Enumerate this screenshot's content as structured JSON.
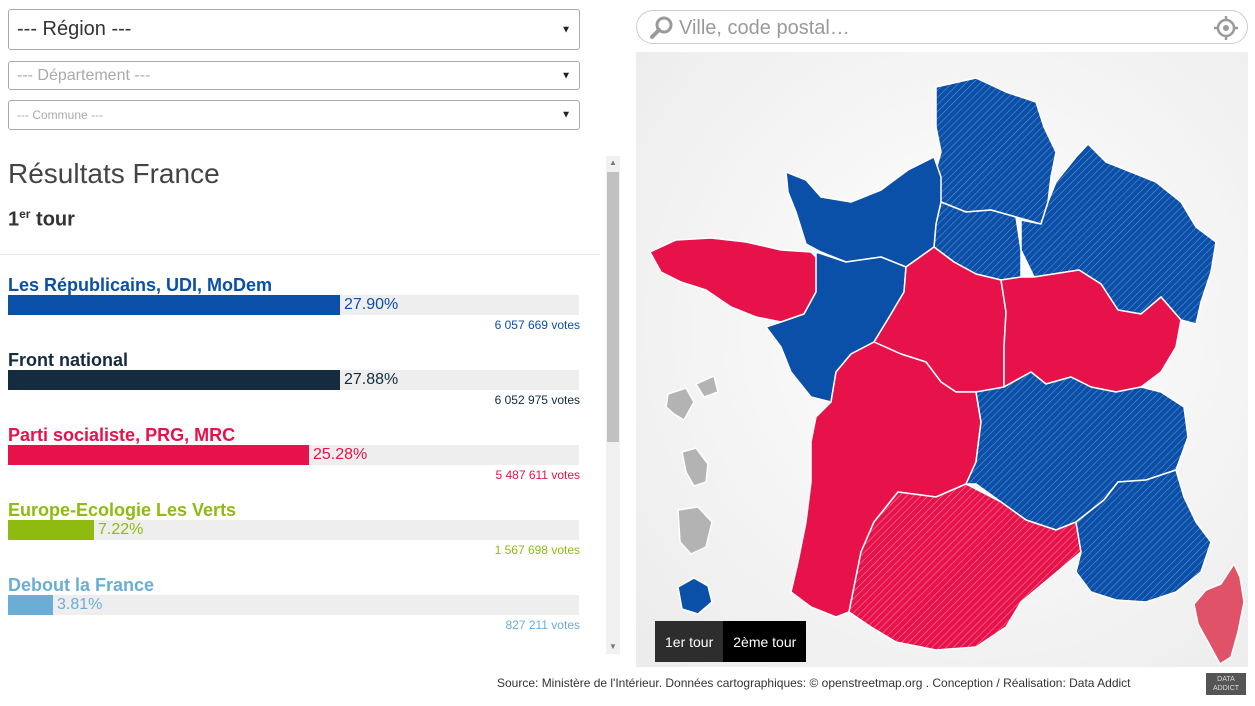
{
  "filters": {
    "region": "--- Région ---",
    "departement": "--- Département ---",
    "commune": "--- Commune ---"
  },
  "results": {
    "title": "Résultats France",
    "round_prefix": "1",
    "round_sup": "er",
    "round_suffix": "tour",
    "parties": [
      {
        "name": "Les Républicains, UDI, MoDem",
        "pct": "27.90%",
        "share": 27.9,
        "votes": "6 057 669 votes",
        "color": "#0a4fa8"
      },
      {
        "name": "Front national",
        "pct": "27.88%",
        "share": 27.88,
        "votes": "6 052 975 votes",
        "color": "#142b40"
      },
      {
        "name": "Parti socialiste, PRG, MRC",
        "pct": "25.28%",
        "share": 25.28,
        "votes": "5 487 611 votes",
        "color": "#e8124b"
      },
      {
        "name": "Europe-Ecologie Les Verts",
        "pct": "7.22%",
        "share": 7.22,
        "votes": "1 567 698 votes",
        "color": "#8fbb10"
      },
      {
        "name": "Debout la France",
        "pct": "3.81%",
        "share": 3.81,
        "votes": "827 211 votes",
        "color": "#6aaed6"
      }
    ]
  },
  "search": {
    "placeholder": "Ville, code postal…",
    "icon": "search-icon",
    "locate_icon": "crosshair-icon"
  },
  "map": {
    "round_buttons": [
      "1er tour",
      "2ème tour"
    ],
    "active_round": "1er tour",
    "colors": {
      "right": "#0a4fa8",
      "left": "#e8124b",
      "dom": "#b3b3b3"
    }
  },
  "footer": {
    "source": "Source: Ministère de l'Intérieur. Données cartographiques: © openstreetmap.org . Conception / Réalisation: Data Addict",
    "logo_line1": "DATA",
    "logo_line2": "ADDICT"
  }
}
